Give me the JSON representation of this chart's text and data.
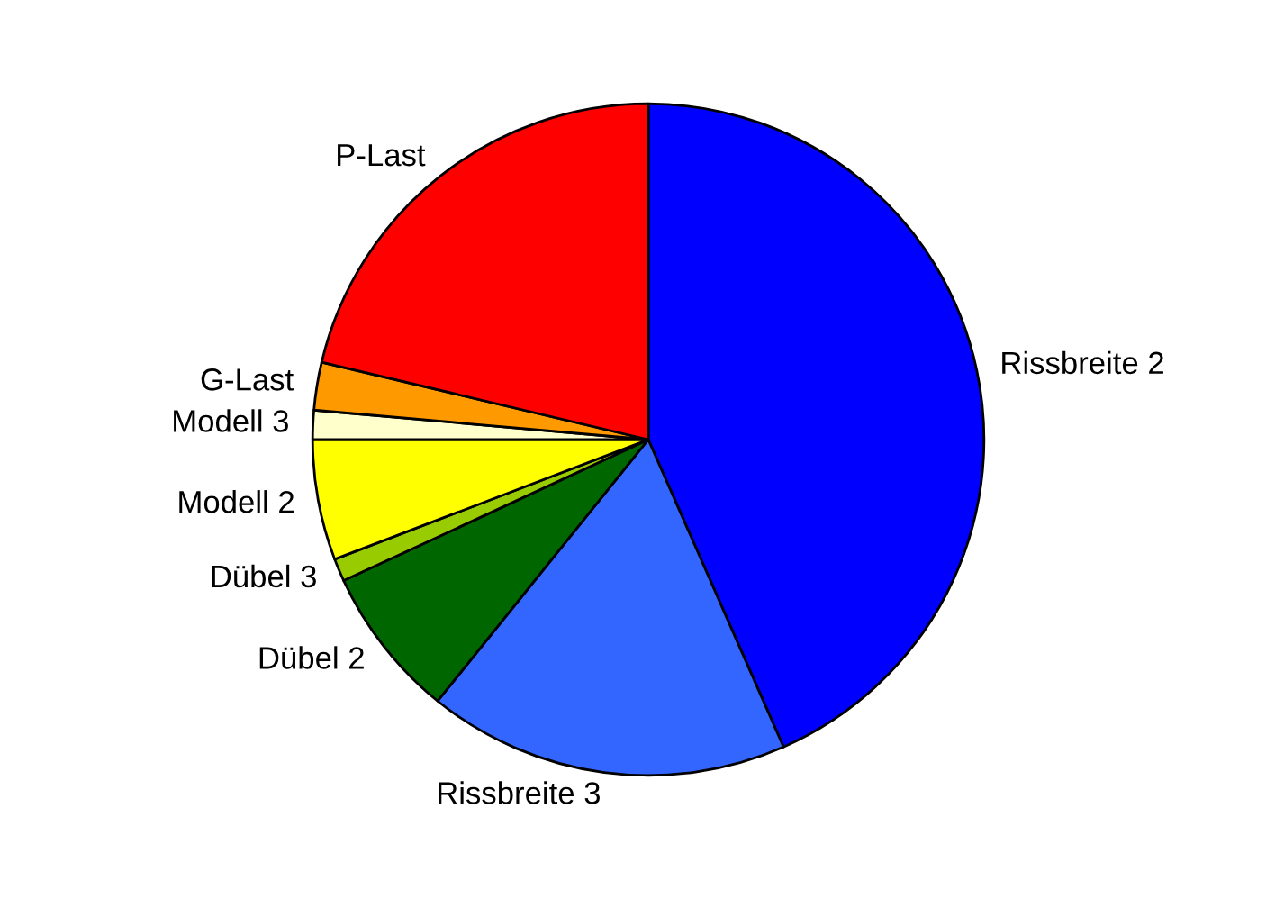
{
  "chart_data": {
    "type": "pie",
    "categories": [
      "Rissbreite 2",
      "Rissbreite 3",
      "Dübel 2",
      "Dübel 3",
      "Modell 2",
      "Modell 3",
      "G-Last",
      "P-Last"
    ],
    "values": [
      43.4,
      17.4,
      7.3,
      1.1,
      5.8,
      1.4,
      2.3,
      21.3
    ],
    "colors": [
      "#0000ff",
      "#3366ff",
      "#006600",
      "#99cc00",
      "#ffff00",
      "#ffffcc",
      "#ff9900",
      "#ff0000"
    ],
    "legend": false
  }
}
